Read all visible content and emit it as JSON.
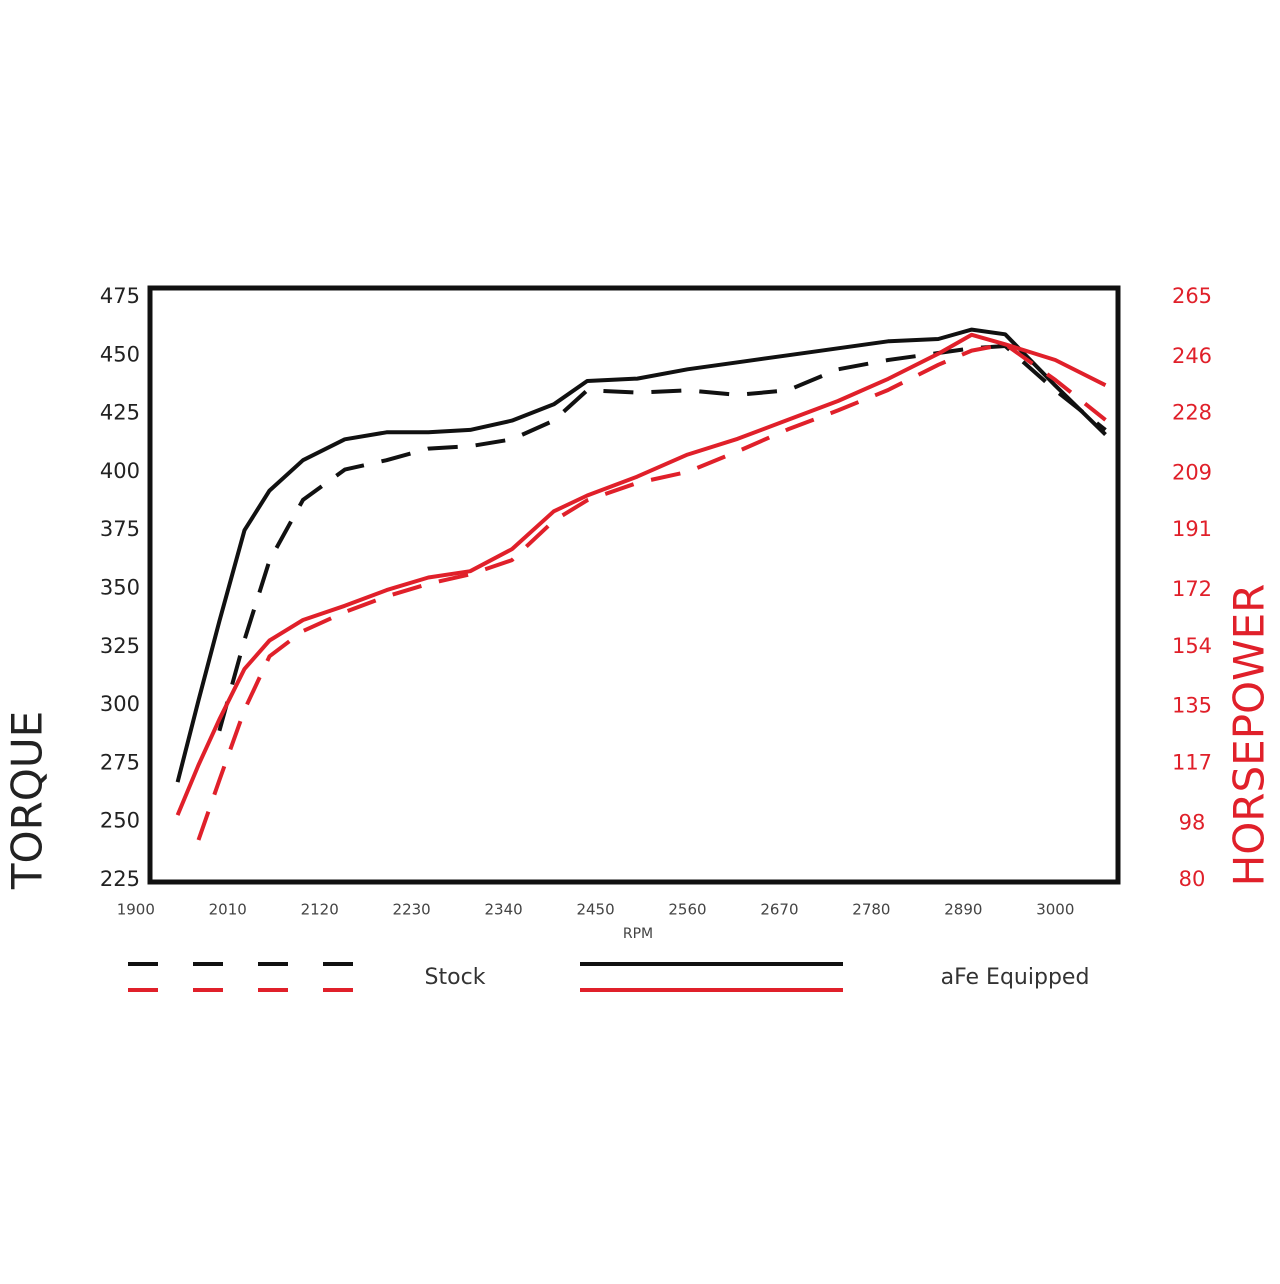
{
  "chart_data": {
    "type": "line",
    "x_label": "RPM",
    "y_label": "TORQUE",
    "y2_label": "HORSEPOWER",
    "x": [
      1950,
      1975,
      2000,
      2030,
      2060,
      2100,
      2150,
      2200,
      2250,
      2300,
      2350,
      2400,
      2440,
      2500,
      2560,
      2620,
      2680,
      2740,
      2800,
      2860,
      2900,
      2940,
      3000,
      3060
    ],
    "series": [
      {
        "name": "Stock",
        "color": "#111111",
        "dash": true,
        "axis": "y",
        "values": [
          null,
          null,
          289,
          328,
          362,
          388,
          401,
          405,
          410,
          411,
          414,
          422,
          435,
          434,
          435,
          433,
          435,
          444,
          448,
          451,
          453,
          454,
          435,
          418
        ]
      },
      {
        "name": "aFe Equipped",
        "color": "#111111",
        "dash": false,
        "axis": "y",
        "values": [
          267,
          302,
          336,
          375,
          392,
          405,
          414,
          417,
          417,
          418,
          422,
          429,
          439,
          440,
          444,
          447,
          450,
          453,
          456,
          457,
          461,
          459,
          437,
          416
        ]
      },
      {
        "color": "#e0202a",
        "dash": true,
        "axis": "y2",
        "values": [
          null,
          92.7,
          111.7,
          134,
          151,
          159,
          165,
          170,
          174,
          177,
          181.5,
          194,
          200.5,
          206,
          209.5,
          216,
          223,
          229,
          235.5,
          243.5,
          248,
          250,
          238.7,
          226
        ]
      },
      {
        "color": "#e0202a",
        "dash": false,
        "axis": "y2",
        "values": [
          100.6,
          116.5,
          131,
          147,
          156,
          162.5,
          167,
          172,
          176,
          178,
          185,
          197,
          202,
          208,
          215,
          220,
          226,
          232,
          239,
          247,
          253,
          250,
          245,
          237
        ]
      }
    ],
    "xlim": [
      1917,
      3075
    ],
    "xticks": [
      1900,
      2010,
      2120,
      2230,
      2340,
      2450,
      2560,
      2670,
      2780,
      2890,
      3000
    ],
    "ylim": [
      225,
      475
    ],
    "yticks": [
      225,
      250,
      275,
      300,
      325,
      350,
      375,
      400,
      425,
      450,
      475
    ],
    "y2lim": [
      80,
      265
    ],
    "y2ticks": [
      80,
      98,
      117,
      135,
      154,
      172,
      191,
      209,
      228,
      246,
      265
    ],
    "grid": false
  }
}
